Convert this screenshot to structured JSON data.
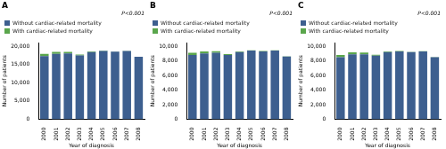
{
  "chart_data": [
    {
      "type": "bar",
      "title": "A",
      "annotation": "P<0.001",
      "xlabel": "Year of diagnosis",
      "ylabel": "Number of patients",
      "categories": [
        "2000",
        "2001",
        "2002",
        "2003",
        "2004",
        "2005",
        "2006",
        "2007",
        "2008"
      ],
      "series": [
        {
          "name": "Without cardiac-related mortality",
          "color": "#3d5f8f",
          "values": [
            17300,
            17900,
            18000,
            17500,
            18400,
            18700,
            18500,
            18700,
            17100
          ]
        },
        {
          "name": "With cardiac-related mortality",
          "color": "#5aa64c",
          "values": [
            600,
            550,
            450,
            250,
            160,
            100,
            80,
            50,
            30
          ]
        }
      ],
      "stacked": true,
      "legend": "top",
      "grid": false,
      "ylim": [
        0,
        21000
      ],
      "yticks": [
        0,
        {
          "value": 5000,
          "label": "5,000"
        },
        {
          "value": 10000,
          "label": "10,000"
        },
        {
          "value": 15000,
          "label": "15,000"
        },
        {
          "value": 20000,
          "label": "20,000"
        }
      ]
    },
    {
      "type": "bar",
      "title": "B",
      "annotation": "P<0.001",
      "xlabel": "Year of diagnosis",
      "ylabel": "Number of patients",
      "categories": [
        "2000",
        "2001",
        "2002",
        "2003",
        "2004",
        "2005",
        "2006",
        "2007",
        "2008"
      ],
      "series": [
        {
          "name": "Without cardiac-related mortality",
          "color": "#3d5f8f",
          "values": [
            8800,
            9000,
            9100,
            8800,
            9200,
            9400,
            9300,
            9400,
            8600
          ]
        },
        {
          "name": "With cardiac-related mortality",
          "color": "#5aa64c",
          "values": [
            300,
            280,
            230,
            130,
            80,
            50,
            40,
            25,
            15
          ]
        }
      ],
      "stacked": true,
      "legend": "top",
      "grid": false,
      "ylim": [
        0,
        10500
      ],
      "yticks": [
        0,
        {
          "value": 2000,
          "label": "2,000"
        },
        {
          "value": 4000,
          "label": "4,000"
        },
        {
          "value": 6000,
          "label": "6,000"
        },
        {
          "value": 8000,
          "label": "8,000"
        },
        {
          "value": 10000,
          "label": "10,000"
        }
      ]
    },
    {
      "type": "bar",
      "title": "C",
      "annotation": "P<0.001",
      "xlabel": "Year of diagnosis",
      "ylabel": "Number of patients",
      "categories": [
        "2000",
        "2001",
        "2002",
        "2003",
        "2004",
        "2005",
        "2006",
        "2007",
        "2008"
      ],
      "series": [
        {
          "name": "Without cardiac-related mortality",
          "color": "#3d5f8f",
          "values": [
            8500,
            8900,
            8900,
            8700,
            9200,
            9300,
            9200,
            9300,
            8500
          ]
        },
        {
          "name": "With cardiac-related mortality",
          "color": "#5aa64c",
          "values": [
            300,
            270,
            220,
            120,
            80,
            50,
            40,
            25,
            15
          ]
        }
      ],
      "stacked": true,
      "legend": "top",
      "grid": false,
      "ylim": [
        0,
        10500
      ],
      "yticks": [
        0,
        {
          "value": 2000,
          "label": "2,000"
        },
        {
          "value": 4000,
          "label": "4,000"
        },
        {
          "value": 6000,
          "label": "6,000"
        },
        {
          "value": 8000,
          "label": "8,000"
        },
        {
          "value": 10000,
          "label": "10,000"
        }
      ]
    }
  ]
}
